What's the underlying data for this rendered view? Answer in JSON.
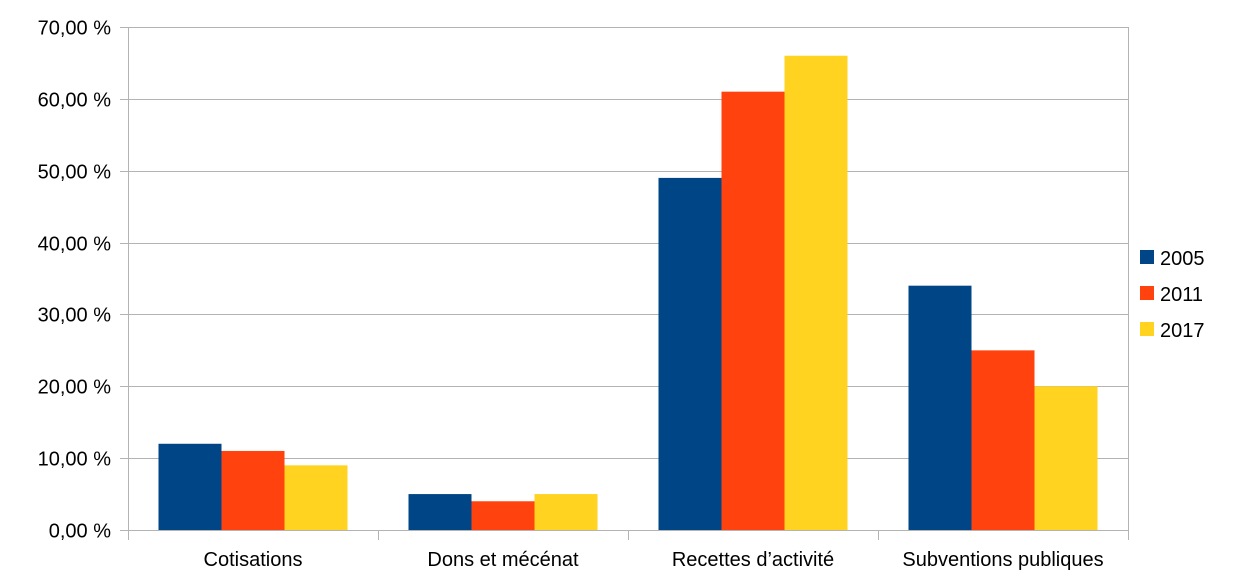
{
  "chart_data": {
    "type": "bar",
    "categories": [
      "Cotisations",
      "Dons et mécénat",
      "Recettes d’activité",
      "Subventions publiques"
    ],
    "series": [
      {
        "name": "2005",
        "color": "#004586",
        "values": [
          12,
          5,
          49,
          34
        ]
      },
      {
        "name": "2011",
        "color": "#ff420e",
        "values": [
          11,
          4,
          61,
          25
        ]
      },
      {
        "name": "2017",
        "color": "#ffd320",
        "values": [
          9,
          5,
          66,
          20
        ]
      }
    ],
    "ylim": [
      0,
      70
    ],
    "yticks": [
      0,
      10,
      20,
      30,
      40,
      50,
      60,
      70
    ],
    "ytick_labels": [
      "0,00 %",
      "10,00 %",
      "20,00 %",
      "30,00 %",
      "40,00 %",
      "50,00 %",
      "60,00 %",
      "70,00 %"
    ],
    "grid": true,
    "legend_position": "right",
    "title": "",
    "xlabel": "",
    "ylabel": ""
  }
}
